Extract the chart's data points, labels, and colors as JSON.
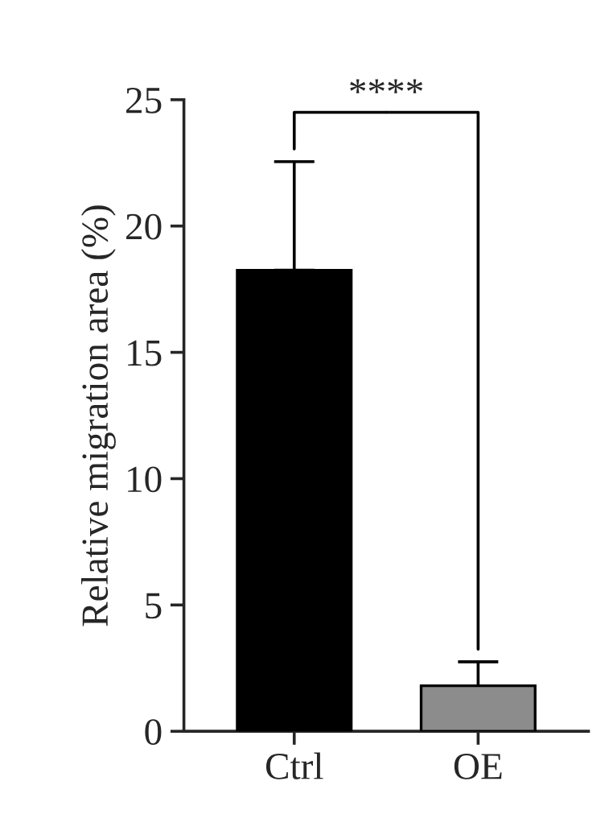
{
  "chart_data": {
    "type": "bar",
    "ylabel": "Relative migration area (%)",
    "categories": [
      "Ctrl",
      "OE"
    ],
    "values": [
      18.25,
      1.8
    ],
    "colors": [
      "#000000",
      "#8c8c8c"
    ],
    "errors": [
      [
        18.25,
        22.55
      ],
      [
        1.8,
        2.75
      ]
    ],
    "ylim": [
      0,
      25
    ],
    "yticks": [
      0,
      5,
      10,
      15,
      20,
      25
    ],
    "grid": false,
    "annotations": [
      "****"
    ]
  }
}
